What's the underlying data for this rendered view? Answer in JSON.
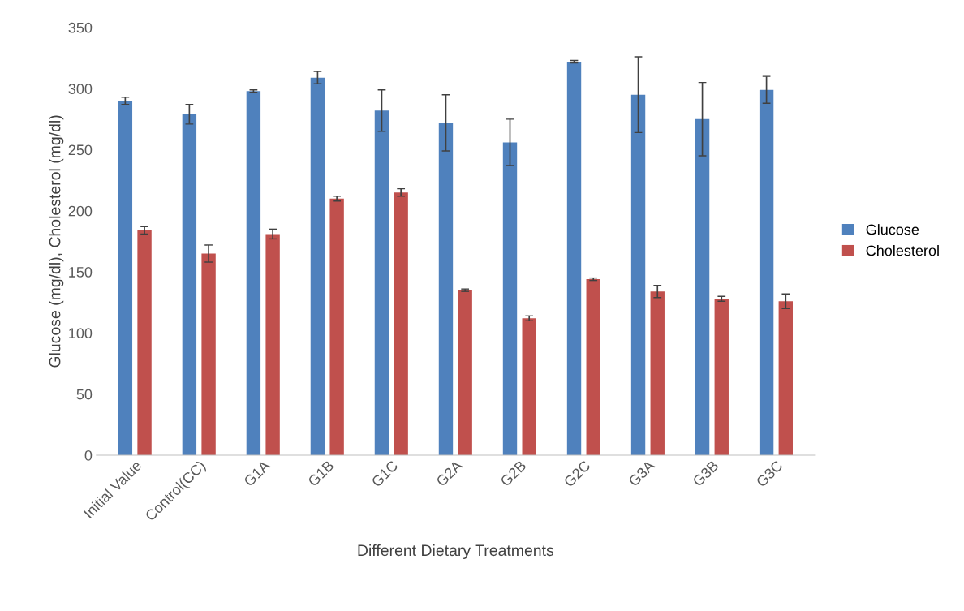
{
  "chart_data": {
    "type": "bar",
    "xlabel": "Different Dietary Treatments",
    "ylabel": "Glucose (mg/dl), Cholesterol (mg/dl)",
    "categories": [
      "Initial Value",
      "Control(CC)",
      "G1A",
      "G1B",
      "G1C",
      "G2A",
      "G2B",
      "G2C",
      "G3A",
      "G3B",
      "G3C"
    ],
    "series": [
      {
        "name": "Glucose",
        "color": "#4f81bd",
        "values": [
          290,
          279,
          298,
          309,
          282,
          272,
          256,
          322,
          295,
          275,
          299
        ],
        "errors": [
          3,
          8,
          1,
          5,
          17,
          23,
          19,
          1,
          31,
          30,
          11
        ]
      },
      {
        "name": "Cholesterol",
        "color": "#c0504d",
        "values": [
          184,
          165,
          181,
          210,
          215,
          135,
          112,
          144,
          134,
          128,
          126
        ],
        "errors": [
          3,
          7,
          4,
          2,
          3,
          1,
          2,
          1,
          5,
          2,
          6
        ]
      }
    ],
    "ylim": [
      0,
      350
    ],
    "yticks": [
      0,
      50,
      100,
      150,
      200,
      250,
      300,
      350
    ],
    "grid": false,
    "legend": "right"
  }
}
